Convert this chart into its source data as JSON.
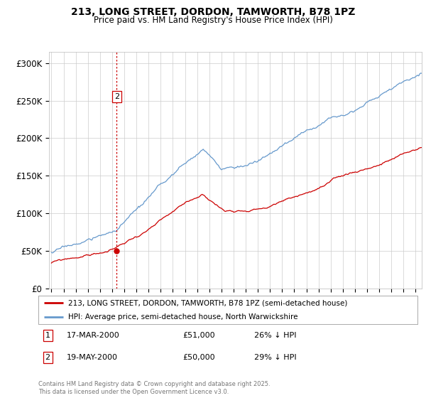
{
  "title": "213, LONG STREET, DORDON, TAMWORTH, B78 1PZ",
  "subtitle": "Price paid vs. HM Land Registry's House Price Index (HPI)",
  "legend_property": "213, LONG STREET, DORDON, TAMWORTH, B78 1PZ (semi-detached house)",
  "legend_hpi": "HPI: Average price, semi-detached house, North Warwickshire",
  "yticks": [
    0,
    50000,
    100000,
    150000,
    200000,
    250000,
    300000
  ],
  "ytick_labels": [
    "£0",
    "£50K",
    "£100K",
    "£150K",
    "£200K",
    "£250K",
    "£300K"
  ],
  "xmin": 1994.8,
  "xmax": 2025.5,
  "ymin": 0,
  "ymax": 315000,
  "property_color": "#cc0000",
  "hpi_color": "#6699cc",
  "transaction1": {
    "label": "1",
    "date": "17-MAR-2000",
    "price": "£51,000",
    "vs_hpi": "26% ↓ HPI",
    "x_year": 2000.21
  },
  "transaction2": {
    "label": "2",
    "date": "19-MAY-2000",
    "price": "£50,000",
    "vs_hpi": "29% ↓ HPI",
    "x_year": 2000.38
  },
  "footer": "Contains HM Land Registry data © Crown copyright and database right 2025.\nThis data is licensed under the Open Government Licence v3.0.",
  "background_color": "#ffffff",
  "grid_color": "#cccccc"
}
